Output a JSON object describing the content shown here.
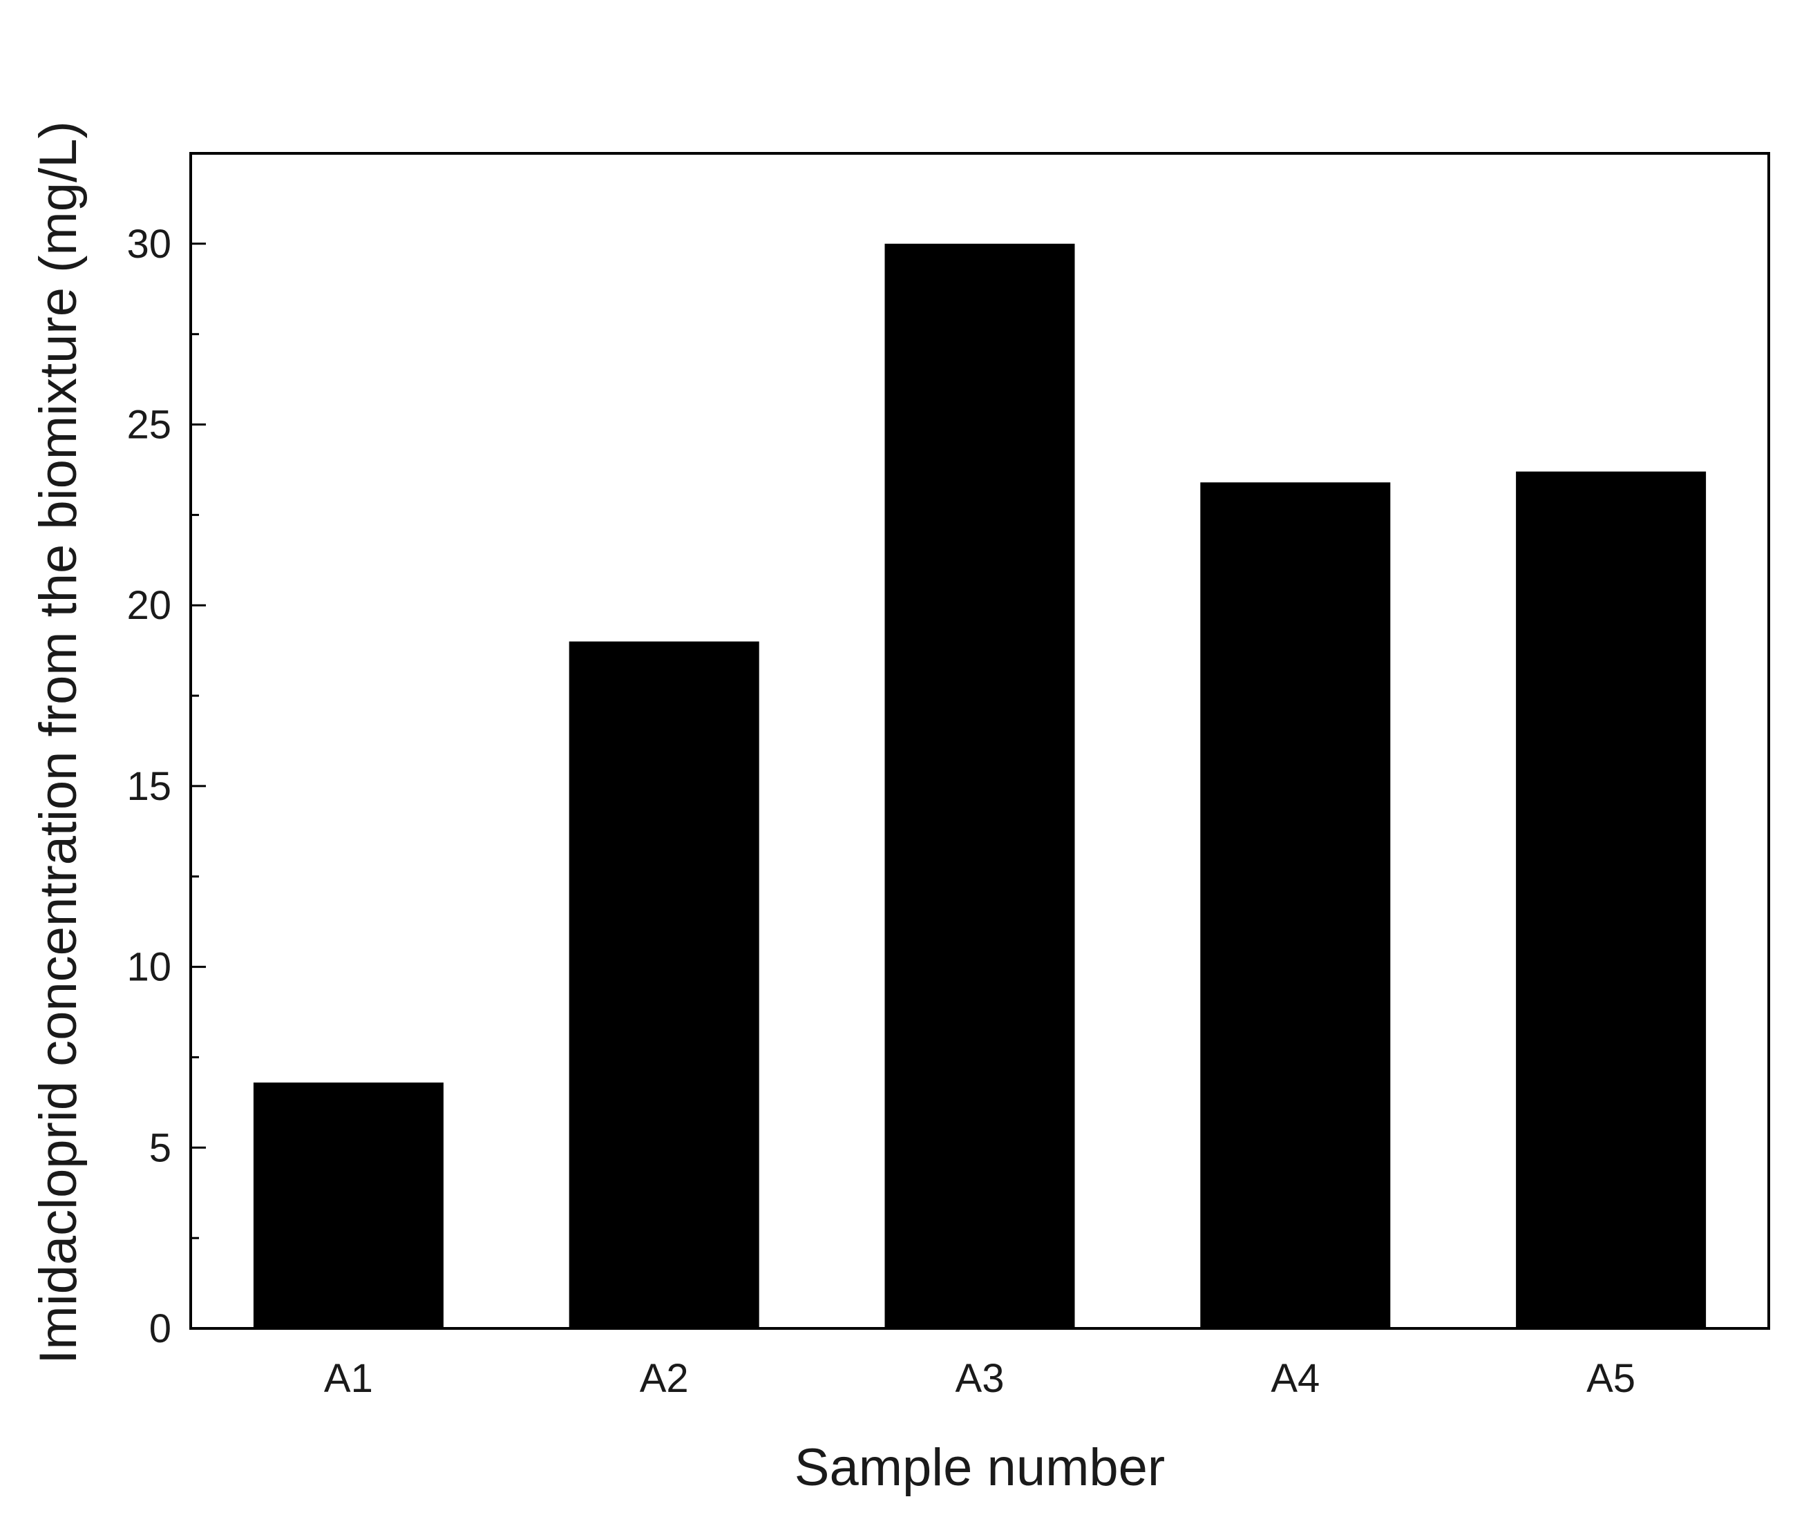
{
  "chart_data": {
    "type": "bar",
    "categories": [
      "A1",
      "A2",
      "A3",
      "A4",
      "A5"
    ],
    "values": [
      6.8,
      19.0,
      30.0,
      23.4,
      23.7
    ],
    "title": "",
    "xlabel": "Sample number",
    "ylabel": "Imidacloprid concentration from the biomixture (mg/L)",
    "ylim": [
      0,
      32.5
    ],
    "yticks": [
      0,
      5,
      10,
      15,
      20,
      25,
      30
    ],
    "yticks_labels": [
      "0",
      "5",
      "10",
      "15",
      "20",
      "25",
      "30"
    ],
    "minor_tick_step": 2.5,
    "grid": false,
    "legend": "none",
    "bar_color": "#000000",
    "axis_color": "#000000"
  }
}
